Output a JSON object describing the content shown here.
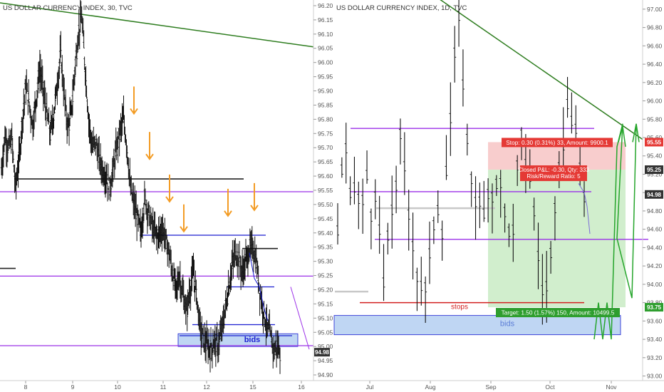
{
  "colors": {
    "purple": "#9b30e8",
    "green_trend": "#2e7d1f",
    "black_line": "#222222",
    "blue_line": "#1a1fd1",
    "red_line": "#d21f1f",
    "orange_arrow": "#f39c25",
    "bids_fill": "#a9c8ef",
    "bids_text": "#1a1fd1",
    "stop_zone": "#f7c4c4",
    "target_zone": "#c9ebc4",
    "label_red": "#e53935",
    "label_green": "#2e9e2e",
    "label_dark": "#333333",
    "axis_text": "#555555",
    "bars": "#111111"
  },
  "chart_data": [
    {
      "type": "ohlc",
      "title": "US DOLLAR CURRENCY INDEX, 30, TVC",
      "x_tick_labels": [
        "8",
        "9",
        "10",
        "11",
        "12",
        "15",
        "16"
      ],
      "y_ticks": [
        "96.20",
        "96.15",
        "96.10",
        "96.05",
        "96.00",
        "95.95",
        "95.90",
        "95.85",
        "95.80",
        "95.75",
        "95.70",
        "95.65",
        "95.60",
        "95.55",
        "95.50",
        "95.45",
        "95.40",
        "95.35",
        "95.30",
        "95.25",
        "95.20",
        "95.15",
        "95.10",
        "95.05",
        "95.00",
        "94.95",
        "94.90"
      ],
      "ylim": [
        94.88,
        96.22
      ],
      "price_label": "94.98",
      "annotations": {
        "zone_label": "bids"
      },
      "levels": [
        {
          "kind": "purple",
          "value": 95.545
        },
        {
          "kind": "purple",
          "value": 95.248
        },
        {
          "kind": "purple",
          "value": 95.003
        },
        {
          "kind": "black",
          "value": 95.59
        },
        {
          "kind": "black",
          "value": 95.345
        },
        {
          "kind": "blue",
          "value": 95.392
        },
        {
          "kind": "blue",
          "value": 95.21
        },
        {
          "kind": "blue",
          "value": 95.077
        },
        {
          "kind": "blue",
          "value": 95.038
        }
      ],
      "trendline": {
        "from": 96.21,
        "to": 96.055
      },
      "bids_zone": [
        95.0,
        95.045
      ],
      "series_shape": [
        95.62,
        95.74,
        95.7,
        95.73,
        95.56,
        95.65,
        95.8,
        95.92,
        95.85,
        95.78,
        95.88,
        95.98,
        95.9,
        95.82,
        95.75,
        95.82,
        95.93,
        96.03,
        95.88,
        95.77,
        95.82,
        95.97,
        96.1,
        96.16,
        95.98,
        95.8,
        95.7,
        95.72,
        95.66,
        95.62,
        95.6,
        95.56,
        95.62,
        95.7,
        95.76,
        95.8,
        95.7,
        95.55,
        95.5,
        95.45,
        95.4,
        95.52,
        95.48,
        95.43,
        95.4,
        95.39,
        95.42,
        95.38,
        95.33,
        95.26,
        95.2,
        95.25,
        95.18,
        95.12,
        95.2,
        95.26,
        95.17,
        95.06,
        95.02,
        95.0,
        94.99,
        95.02,
        95.0,
        95.05,
        95.12,
        95.2,
        95.28,
        95.33,
        95.31,
        95.26,
        95.3,
        95.34,
        95.35,
        95.3,
        95.2,
        95.13,
        95.07,
        95.04,
        94.99,
        95.0,
        94.98
      ]
    },
    {
      "type": "ohlc",
      "title": "US DOLLAR CURRENCY INDEX, 1D, TVC",
      "x_tick_labels": [
        "Jul",
        "Aug",
        "Sep",
        "Oct",
        "Nov"
      ],
      "y_ticks": [
        "97.00",
        "96.80",
        "96.60",
        "96.40",
        "96.20",
        "96.00",
        "95.80",
        "95.60",
        "95.40",
        "95.20",
        "95.00",
        "94.80",
        "94.60",
        "94.40",
        "94.20",
        "94.00",
        "93.80",
        "93.60",
        "93.40",
        "93.20",
        "93.00"
      ],
      "ylim": [
        92.95,
        97.1
      ],
      "price_labels": [
        {
          "text": "95.55",
          "value": 95.55,
          "kind": "red"
        },
        {
          "text": "95.25",
          "value": 95.25,
          "kind": "dark"
        },
        {
          "text": "94.98",
          "value": 94.98,
          "kind": "dark"
        },
        {
          "text": "93.75",
          "value": 93.75,
          "kind": "green"
        }
      ],
      "annotations": {
        "stop_label": "Stop: 0.30 (0.31%) 33, Amount: 9900.1",
        "closed_label": "Closed P&L: -0.30, Qty: 333",
        "rr_label": "Risk/Reward Ratio: 5",
        "target_label": "Target: 1.50 (1.57%) 150, Amount: 10499.5",
        "stops_text": "stops",
        "zone_label": "bids"
      },
      "position": {
        "entry": 95.25,
        "stop": 95.55,
        "target": 93.75
      },
      "levels": [
        {
          "kind": "purple",
          "value": 95.7
        },
        {
          "kind": "purple",
          "value": 95.01
        },
        {
          "kind": "purple",
          "value": 94.49
        },
        {
          "kind": "red",
          "value": 93.8
        }
      ],
      "bids_zone": [
        93.45,
        93.66
      ],
      "trendline": {
        "from": 97.2,
        "to": 95.58
      },
      "series_shape": [
        94.6,
        95.2,
        95.6,
        95.1,
        94.7,
        95.2,
        94.9,
        94.8,
        95.3,
        95.0,
        94.7,
        94.9,
        94.5,
        94.0,
        94.3,
        94.8,
        94.9,
        95.3,
        95.6,
        95.2,
        94.8,
        94.7,
        94.2,
        94.1,
        94.0,
        93.9,
        94.2,
        94.6,
        95.0,
        94.8,
        94.6,
        95.4,
        95.8,
        96.3,
        96.9,
        96.7,
        96.0,
        95.4,
        95.2,
        95.0,
        94.9,
        94.7,
        94.8,
        94.9,
        95.0,
        95.2,
        95.1,
        94.9,
        94.6,
        94.7,
        94.5,
        95.2,
        95.6,
        95.3,
        95.5,
        95.0,
        94.7,
        94.3,
        94.0,
        93.9,
        94.1,
        94.5,
        94.8,
        95.2,
        95.6,
        95.9,
        96.0,
        95.7,
        95.5,
        95.2,
        95.0
      ],
      "drawn_bars": 60
    }
  ]
}
